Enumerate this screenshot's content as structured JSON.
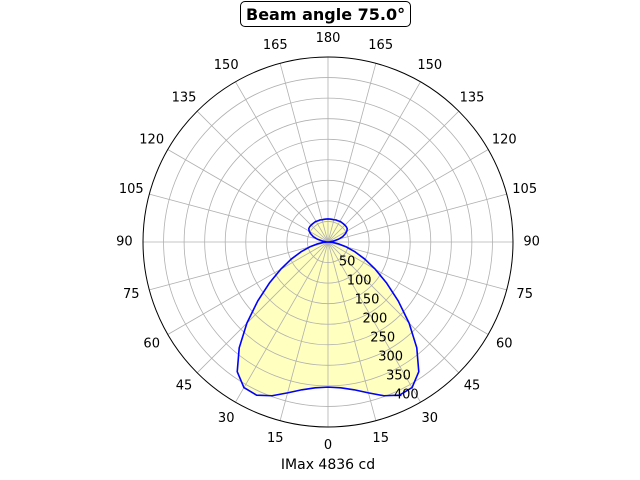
{
  "chart_data": {
    "type": "polar",
    "title": "Beam angle 75.0°",
    "xlabel": "IMax 4836 cd",
    "angle_ticks": [
      {
        "label": "180",
        "angle": 180
      },
      {
        "label": "165",
        "angle": 165
      },
      {
        "label": "150",
        "angle": 150
      },
      {
        "label": "135",
        "angle": 135
      },
      {
        "label": "120",
        "angle": 120
      },
      {
        "label": "105",
        "angle": 105
      },
      {
        "label": "90",
        "angle": 90
      },
      {
        "label": "75",
        "angle": 75
      },
      {
        "label": "60",
        "angle": 60
      },
      {
        "label": "45",
        "angle": 45
      },
      {
        "label": "30",
        "angle": 30
      },
      {
        "label": "15",
        "angle": 15
      },
      {
        "label": "0",
        "angle": 0
      },
      {
        "label": "15",
        "angle": -15
      },
      {
        "label": "30",
        "angle": -30
      },
      {
        "label": "45",
        "angle": -45
      },
      {
        "label": "60",
        "angle": -60
      },
      {
        "label": "75",
        "angle": -75
      },
      {
        "label": "90",
        "angle": -90
      },
      {
        "label": "105",
        "angle": -105
      },
      {
        "label": "120",
        "angle": -120
      },
      {
        "label": "135",
        "angle": -135
      },
      {
        "label": "150",
        "angle": -150
      },
      {
        "label": "165",
        "angle": -165
      }
    ],
    "radial_ticks": [
      "50",
      "100",
      "150",
      "200",
      "250",
      "300",
      "350",
      "400"
    ],
    "radial_values": [
      50,
      100,
      150,
      200,
      250,
      300,
      350,
      400
    ],
    "rlim": [
      0,
      450
    ],
    "grid": true,
    "line_color": "#0000ff",
    "fill_color": "#ffffbf",
    "series": [
      {
        "angles": [
          0,
          5,
          10,
          15,
          20,
          25,
          30,
          35,
          40,
          45,
          50,
          55,
          60,
          65,
          70,
          75,
          80,
          85,
          90,
          95,
          100,
          105,
          110,
          115,
          120,
          125,
          130,
          135,
          140,
          145,
          150,
          155,
          160,
          165,
          170,
          175,
          180,
          185,
          190,
          195,
          200,
          205,
          210,
          215,
          220,
          225,
          230,
          235,
          240,
          245,
          250,
          255,
          260,
          265,
          270,
          275,
          280,
          285,
          290,
          295,
          300,
          305,
          310,
          315,
          320,
          325,
          330,
          335,
          340,
          345,
          350,
          355
        ],
        "values": [
          353,
          356,
          365,
          380,
          398,
          411,
          409,
          385,
          336,
          279,
          223,
          174,
          133,
          99,
          70,
          46,
          26,
          11,
          0,
          5,
          15,
          27,
          38,
          46,
          53,
          57,
          58,
          58,
          58,
          58,
          58,
          57,
          57,
          56,
          56,
          56,
          56,
          56,
          56,
          56,
          57,
          57,
          58,
          58,
          58,
          58,
          58,
          57,
          53,
          46,
          38,
          27,
          15,
          5,
          0,
          11,
          26,
          46,
          70,
          99,
          133,
          174,
          223,
          279,
          336,
          385,
          409,
          411,
          398,
          380,
          365,
          356
        ]
      }
    ]
  }
}
